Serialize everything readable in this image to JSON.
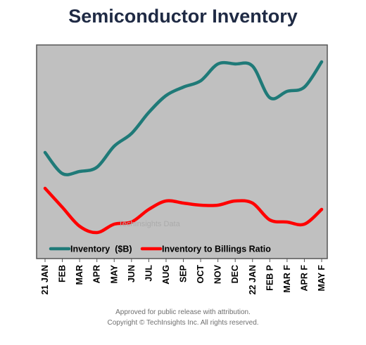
{
  "chart_data": {
    "type": "line",
    "title": "Semiconductor Inventory",
    "categories": [
      "21 JAN",
      "FEB",
      "MAR",
      "APR",
      "MAY",
      "JUN",
      "JUL",
      "AUG",
      "SEP",
      "OCT",
      "NOV",
      "DEC",
      "22 JAN",
      "FEB P",
      "MAR F",
      "APR F",
      "MAY F"
    ],
    "series": [
      {
        "name": "Inventory  ($B)",
        "color": "#1f7a78",
        "values": [
          50,
          40,
          41,
          43,
          53,
          59,
          69,
          77,
          81,
          84,
          92,
          92,
          91,
          76,
          79,
          81,
          93
        ]
      },
      {
        "name": "Inventory to Billings Ratio",
        "color": "#ff0000",
        "values": [
          33,
          24,
          15,
          12,
          16,
          17,
          23,
          27,
          26,
          25,
          25,
          27,
          26,
          18,
          17,
          16,
          23
        ]
      }
    ],
    "ylim": [
      0,
      100
    ],
    "grid": false,
    "legend_position": "bottom-inside",
    "plot_background": "#c0c0c0",
    "watermark": "TechInsights Data"
  },
  "footer": {
    "line1": "Approved for public release with attribution.",
    "line2": "Copyright © TechInsights Inc.  All rights reserved."
  }
}
